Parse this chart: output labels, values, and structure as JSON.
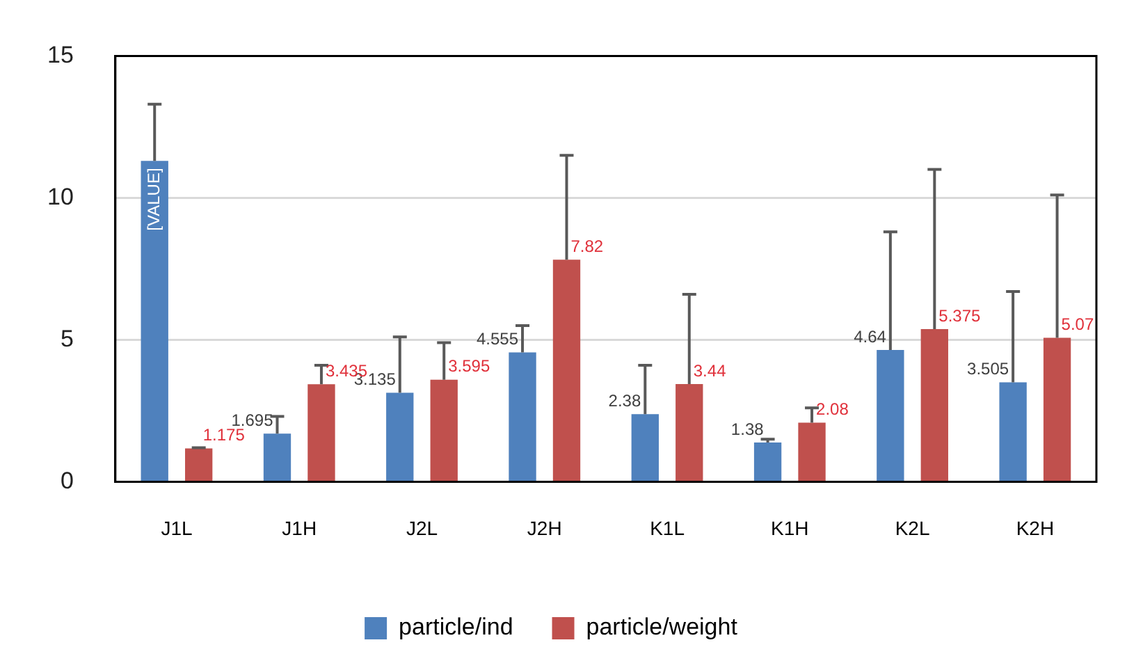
{
  "chart_data": {
    "type": "bar",
    "categories": [
      "J1L",
      "J1H",
      "J2L",
      "J2H",
      "K1L",
      "K1H",
      "K2L",
      "K2H"
    ],
    "series": [
      {
        "name": "particle/ind",
        "color": "#4f81bd",
        "values": [
          11.3,
          1.695,
          3.135,
          4.555,
          2.38,
          1.38,
          4.64,
          3.505
        ],
        "errors": [
          [
            11.3,
            13.3
          ],
          [
            1.695,
            2.3
          ],
          [
            3.135,
            5.1
          ],
          [
            4.555,
            5.5
          ],
          [
            2.38,
            4.1
          ],
          [
            1.38,
            1.5
          ],
          [
            4.64,
            8.8
          ],
          [
            3.505,
            6.7
          ]
        ],
        "value_labels": [
          "[VALUE]",
          "1.695",
          "3.135",
          "4.555",
          "2.38",
          "1.38",
          "4.64",
          "3.505"
        ]
      },
      {
        "name": "particle/weight",
        "color": "#c0504d",
        "values": [
          1.175,
          3.435,
          3.595,
          7.82,
          3.44,
          2.08,
          5.375,
          5.07
        ],
        "errors": [
          [
            1.175,
            1.2
          ],
          [
            3.435,
            4.1
          ],
          [
            3.595,
            4.9
          ],
          [
            7.82,
            11.5
          ],
          [
            3.44,
            6.6
          ],
          [
            2.08,
            2.6
          ],
          [
            5.375,
            11.0
          ],
          [
            5.07,
            10.1
          ]
        ],
        "value_labels": [
          "1.175",
          "3.435",
          "3.595",
          "7.82",
          "3.44",
          "2.08",
          "5.375",
          "5.07"
        ]
      }
    ],
    "ylim": [
      0,
      15
    ],
    "yticks": [
      0,
      5,
      10,
      15
    ],
    "grid": "y",
    "legend": "bottom"
  }
}
